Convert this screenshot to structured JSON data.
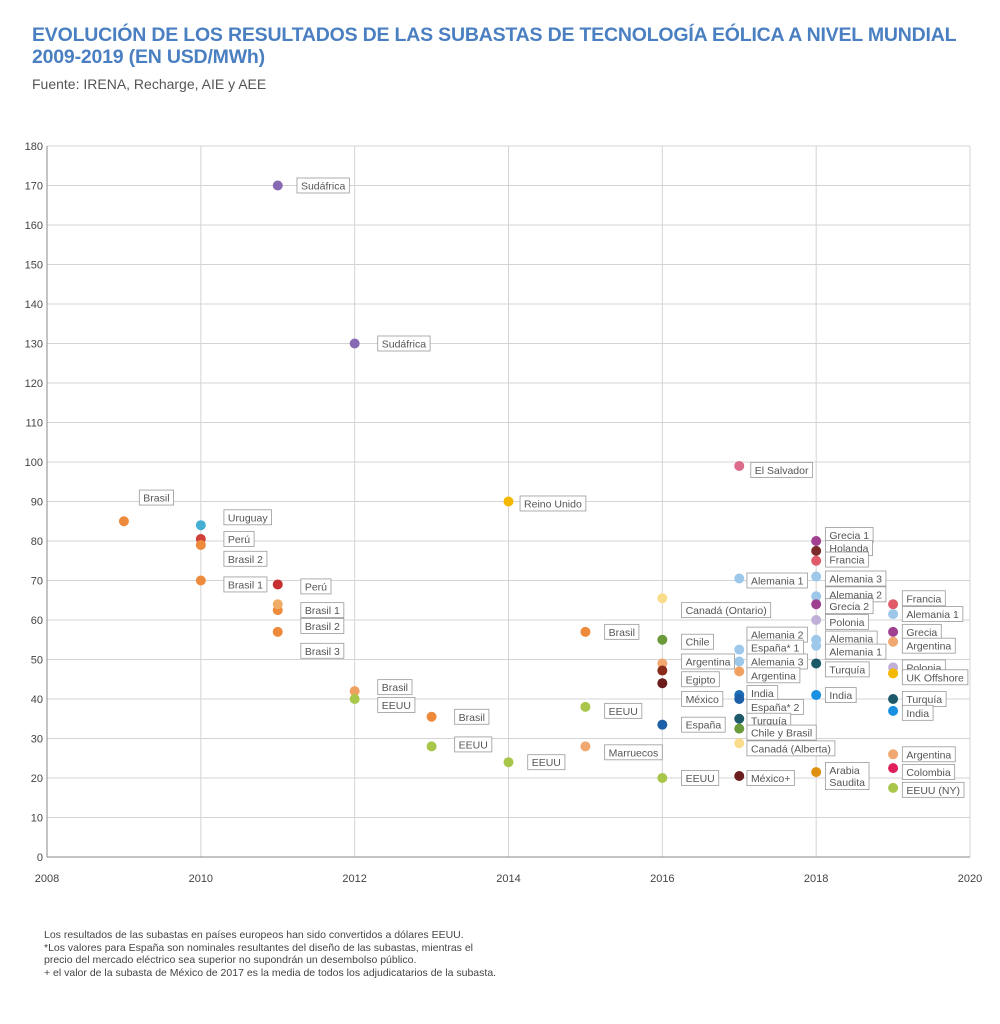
{
  "header": {
    "title_line1": "EVOLUCIÓN DE LOS RESULTADOS DE LAS SUBASTAS DE TECNOLOGÍA EÓLICA A NIVEL MUNDIAL",
    "title_line2": "2009-2019 (EN USD/MWh)",
    "source": "Fuente: IRENA, Recharge, AIE y AEE"
  },
  "notes": [
    "Los resultados de las subastas en países europeos han sido convertidos a dólares EEUU.",
    "*Los valores para España son nominales resultantes del diseño de las subastas, mientras el",
    "precio del mercado eléctrico sea superior no supondrán un desembolso público.",
    "+ el valor de la subasta de México de 2017 es la media de todos los adjudicatarios de la subasta."
  ],
  "chart_data": {
    "type": "scatter",
    "title": "EVOLUCIÓN DE LOS RESULTADOS DE LAS SUBASTAS DE TECNOLOGÍA EÓLICA A NIVEL MUNDIAL 2009-2019 (EN USD/MWh)",
    "xlabel": "",
    "ylabel": "",
    "xlim": [
      2008,
      2020
    ],
    "ylim": [
      0,
      180
    ],
    "x_ticks": [
      2008,
      2010,
      2012,
      2014,
      2016,
      2018,
      2020
    ],
    "y_ticks": [
      0,
      10,
      20,
      30,
      40,
      50,
      60,
      70,
      80,
      90,
      100,
      110,
      120,
      130,
      140,
      150,
      160,
      170,
      180
    ],
    "grid": true,
    "points": [
      {
        "label": "Brasil",
        "x": 2009,
        "y": 85,
        "color": "#ee8a3c",
        "lx": 2009.2,
        "ly": 91
      },
      {
        "label": "Uruguay",
        "x": 2010,
        "y": 84,
        "color": "#45aed3",
        "lx": 2010.3,
        "ly": 86
      },
      {
        "label": "Perú",
        "x": 2010,
        "y": 80.5,
        "color": "#d04038",
        "lx": 2010.3,
        "ly": 80.5
      },
      {
        "label": "Brasil 2",
        "x": 2010,
        "y": 79,
        "color": "#ee8a3c",
        "lx": 2010.3,
        "ly": 75.5
      },
      {
        "label": "Brasil 1",
        "x": 2010,
        "y": 70,
        "color": "#ee8a3c",
        "lx": 2010.3,
        "ly": 69
      },
      {
        "label": "Sudáfrica",
        "x": 2011,
        "y": 170,
        "color": "#8669b2",
        "lx": 2011.25,
        "ly": 170
      },
      {
        "label": "Perú",
        "x": 2011,
        "y": 69,
        "color": "#c63030",
        "lx": 2011.3,
        "ly": 68.5
      },
      {
        "label": "Brasil 1",
        "x": 2011,
        "y": 62.5,
        "color": "#ee8a3c",
        "lx": 2011.3,
        "ly": 62.5
      },
      {
        "label": "",
        "x": 2011,
        "y": 64,
        "color": "#f0ad68"
      },
      {
        "label": "Brasil 2",
        "x": 2011,
        "y": 57,
        "color": "#ee8a3c",
        "lx": 2011.3,
        "ly": 58.5
      },
      {
        "label": "Brasil 3",
        "x": 2011,
        "y": 57,
        "color": "#ee8a3c",
        "lx": 2011.3,
        "ly": 52.2,
        "nodot": true
      },
      {
        "label": "Sudáfrica",
        "x": 2012,
        "y": 130,
        "color": "#8669b2",
        "lx": 2012.3,
        "ly": 130
      },
      {
        "label": "Brasil",
        "x": 2012,
        "y": 42,
        "color": "#f0a060",
        "lx": 2012.3,
        "ly": 43
      },
      {
        "label": "EEUU",
        "x": 2012,
        "y": 40,
        "color": "#a8c74a",
        "lx": 2012.3,
        "ly": 38.5
      },
      {
        "label": "Brasil",
        "x": 2013,
        "y": 35.5,
        "color": "#ee8a3c",
        "lx": 2013.3,
        "ly": 35.5
      },
      {
        "label": "EEUU",
        "x": 2013,
        "y": 28,
        "color": "#a8c74a",
        "lx": 2013.3,
        "ly": 28.5
      },
      {
        "label": "Reino Unido",
        "x": 2014,
        "y": 90,
        "color": "#f5b800",
        "lx": 2014.15,
        "ly": 89.5
      },
      {
        "label": "EEUU",
        "x": 2014,
        "y": 24,
        "color": "#a8c74a",
        "lx": 2014.25,
        "ly": 24
      },
      {
        "label": "Brasil",
        "x": 2015,
        "y": 57,
        "color": "#ee8a3c",
        "lx": 2015.25,
        "ly": 57
      },
      {
        "label": "EEUU",
        "x": 2015,
        "y": 38,
        "color": "#a8c74a",
        "lx": 2015.25,
        "ly": 37
      },
      {
        "label": "Marruecos",
        "x": 2015,
        "y": 28,
        "color": "#f0a870",
        "lx": 2015.25,
        "ly": 26.5
      },
      {
        "label": "Canadá (Ontario)",
        "x": 2016,
        "y": 65.5,
        "color": "#f9dd8a",
        "lx": 2016.25,
        "ly": 62.5
      },
      {
        "label": "Chile",
        "x": 2016,
        "y": 55,
        "color": "#6a9a3a",
        "lx": 2016.25,
        "ly": 54.5
      },
      {
        "label": "Argentina",
        "x": 2016,
        "y": 49,
        "color": "#f0a870",
        "lx": 2016.25,
        "ly": 49.5
      },
      {
        "label": "Egipto",
        "x": 2016,
        "y": 47.2,
        "color": "#8a2b1a",
        "lx": 2016.25,
        "ly": 45
      },
      {
        "label": "",
        "x": 2016,
        "y": 44,
        "color": "#6b1c1c"
      },
      {
        "label": "México",
        "x": 2016,
        "y": 44,
        "color": "#6b1c1c",
        "lx": 2016.25,
        "ly": 40,
        "nodot": true
      },
      {
        "label": "España",
        "x": 2016,
        "y": 33.5,
        "color": "#1d5fa6",
        "lx": 2016.25,
        "ly": 33.5
      },
      {
        "label": "EEUU",
        "x": 2016,
        "y": 20,
        "color": "#a8c74a",
        "lx": 2016.25,
        "ly": 20
      },
      {
        "label": "El Salvador",
        "x": 2017,
        "y": 99,
        "color": "#dd6b8c",
        "lx": 2017.15,
        "ly": 98
      },
      {
        "label": "Alemania 1",
        "x": 2017,
        "y": 70.5,
        "color": "#9dc8ea",
        "lx": 2017.1,
        "ly": 70
      },
      {
        "label": "Alemania 2",
        "x": 2017,
        "y": 52.5,
        "color": "#9dc8ea",
        "lx": 2017.1,
        "ly": 56.3
      },
      {
        "label": "España* 1",
        "x": 2017,
        "y": 52.5,
        "color": "#9dc8ea",
        "lx": 2017.1,
        "ly": 53,
        "nodot": true
      },
      {
        "label": "Alemania 3",
        "x": 2017,
        "y": 49.5,
        "color": "#9dc8ea",
        "lx": 2017.1,
        "ly": 49.5
      },
      {
        "label": "Argentina",
        "x": 2017,
        "y": 47,
        "color": "#f0a060",
        "lx": 2017.1,
        "ly": 46
      },
      {
        "label": "India",
        "x": 2017,
        "y": 41,
        "color": "#1d6fb8",
        "lx": 2017.1,
        "ly": 41.5
      },
      {
        "label": "",
        "x": 2017,
        "y": 40,
        "color": "#1d5fa6"
      },
      {
        "label": "España* 2",
        "x": 2017,
        "y": 40,
        "color": "#1d5fa6",
        "lx": 2017.1,
        "ly": 38,
        "nodot": true
      },
      {
        "label": "Turquía",
        "x": 2017,
        "y": 35,
        "color": "#1c5a6a",
        "lx": 2017.1,
        "ly": 34.5
      },
      {
        "label": "Chile y Brasil",
        "x": 2017,
        "y": 32.5,
        "color": "#6a9a3a",
        "lx": 2017.1,
        "ly": 31.5
      },
      {
        "label": "Canadá (Alberta)",
        "x": 2017,
        "y": 28.8,
        "color": "#f9dd8a",
        "lx": 2017.1,
        "ly": 27.5
      },
      {
        "label": "México+",
        "x": 2017,
        "y": 20.5,
        "color": "#6b1c1c",
        "lx": 2017.1,
        "ly": 20
      },
      {
        "label": "Grecia 1",
        "x": 2018,
        "y": 80,
        "color": "#a04090",
        "lx": 2018.12,
        "ly": 81.5
      },
      {
        "label": "Holanda",
        "x": 2018,
        "y": 77.5,
        "color": "#7a2a2a",
        "lx": 2018.12,
        "ly": 78.2
      },
      {
        "label": "Francia",
        "x": 2018,
        "y": 75,
        "color": "#e05a6a",
        "lx": 2018.12,
        "ly": 75.3
      },
      {
        "label": "Alemania 3",
        "x": 2018,
        "y": 71,
        "color": "#9dc8ea",
        "lx": 2018.12,
        "ly": 70.5
      },
      {
        "label": "Alemania 2",
        "x": 2018,
        "y": 66,
        "color": "#9dc8ea",
        "lx": 2018.12,
        "ly": 66.5
      },
      {
        "label": "Grecia 2",
        "x": 2018,
        "y": 64,
        "color": "#a04090",
        "lx": 2018.12,
        "ly": 63.5
      },
      {
        "label": "Polonia",
        "x": 2018,
        "y": 60,
        "color": "#c0b0d8",
        "lx": 2018.12,
        "ly": 59.5
      },
      {
        "label": "Alemania",
        "x": 2018,
        "y": 55,
        "color": "#9dc8ea",
        "lx": 2018.12,
        "ly": 55.3
      },
      {
        "label": "Alemania 1",
        "x": 2018,
        "y": 53.5,
        "color": "#9dc8ea",
        "lx": 2018.12,
        "ly": 52
      },
      {
        "label": "Turquía",
        "x": 2018,
        "y": 49,
        "color": "#1c5a6a",
        "lx": 2018.12,
        "ly": 47.5
      },
      {
        "label": "India",
        "x": 2018,
        "y": 41,
        "color": "#1a90e0",
        "lx": 2018.12,
        "ly": 41
      },
      {
        "label": "Arabia Saudita",
        "x": 2018,
        "y": 21.5,
        "color": "#e09010",
        "lx": 2018.12,
        "ly": 20.5
      },
      {
        "label": "Francia",
        "x": 2019,
        "y": 64,
        "color": "#e05a6a",
        "lx": 2019.12,
        "ly": 65.5
      },
      {
        "label": "Alemania 1",
        "x": 2019,
        "y": 61.5,
        "color": "#9dc8ea",
        "lx": 2019.12,
        "ly": 61.5
      },
      {
        "label": "Grecia",
        "x": 2019,
        "y": 57,
        "color": "#a04090",
        "lx": 2019.12,
        "ly": 57
      },
      {
        "label": "Argentina",
        "x": 2019,
        "y": 54.5,
        "color": "#f0a870",
        "lx": 2019.12,
        "ly": 53.5
      },
      {
        "label": "Polonia",
        "x": 2019,
        "y": 48,
        "color": "#c0b0d8",
        "lx": 2019.12,
        "ly": 48
      },
      {
        "label": "UK Offshore",
        "x": 2019,
        "y": 46.5,
        "color": "#f5b800",
        "lx": 2019.12,
        "ly": 45.5
      },
      {
        "label": "Turquía",
        "x": 2019,
        "y": 40,
        "color": "#1c5a6a",
        "lx": 2019.12,
        "ly": 40
      },
      {
        "label": "India",
        "x": 2019,
        "y": 37,
        "color": "#1a90e0",
        "lx": 2019.12,
        "ly": 36.5
      },
      {
        "label": "Argentina",
        "x": 2019,
        "y": 26,
        "color": "#f0a870",
        "lx": 2019.12,
        "ly": 26
      },
      {
        "label": "Colombia",
        "x": 2019,
        "y": 22.5,
        "color": "#e0205a",
        "lx": 2019.12,
        "ly": 21.5
      },
      {
        "label": "EEUU (NY)",
        "x": 2019,
        "y": 17.5,
        "color": "#a8c74a",
        "lx": 2019.12,
        "ly": 17
      }
    ]
  }
}
